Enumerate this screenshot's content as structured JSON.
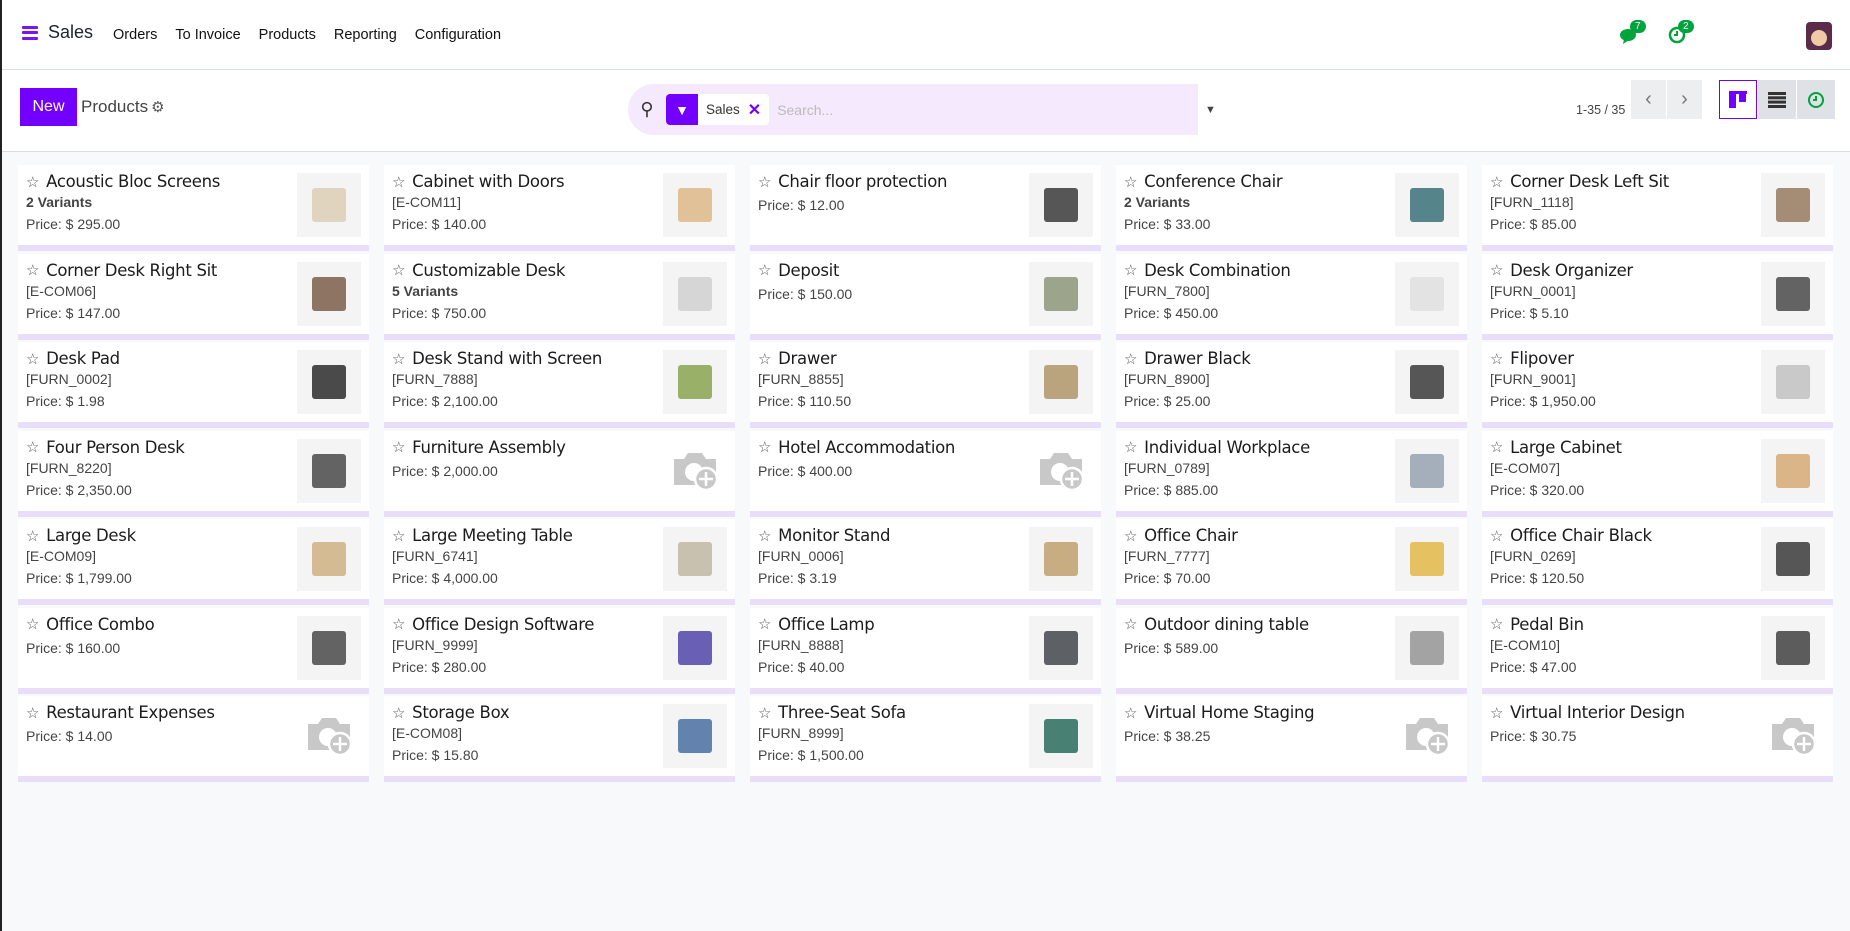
{
  "nav": {
    "app": "Sales",
    "menu": [
      "Orders",
      "To Invoice",
      "Products",
      "Reporting",
      "Configuration"
    ],
    "messages_count": "7",
    "activities_count": "2"
  },
  "control": {
    "new_label": "New",
    "breadcrumb": "Products",
    "filter_facet": "Sales",
    "search_placeholder": "Search...",
    "pager": "1-35 / 35",
    "active_view": "kanban"
  },
  "colors": {
    "brand": "#7300ff",
    "search_bg": "#f5e9fd",
    "badge": "#00a33c"
  },
  "products": [
    {
      "name": "Acoustic Bloc Screens",
      "sub": "2 Variants",
      "variants": true,
      "price": "Price: $ 295.00",
      "has_image": true,
      "tone": "#d8c9ad"
    },
    {
      "name": "Cabinet with Doors",
      "sub": "[E-COM11]",
      "price": "Price: $ 140.00",
      "has_image": true,
      "tone": "#d9b07a"
    },
    {
      "name": "Chair floor protection",
      "price": "Price: $ 12.00",
      "has_image": true,
      "tone": "#222"
    },
    {
      "name": "Conference Chair",
      "sub": "2 Variants",
      "variants": true,
      "price": "Price: $ 33.00",
      "has_image": true,
      "tone": "#1f5f68"
    },
    {
      "name": "Corner Desk Left Sit",
      "sub": "[FURN_1118]",
      "price": "Price: $ 85.00",
      "has_image": true,
      "tone": "#8a6a4b"
    },
    {
      "name": "Corner Desk Right Sit",
      "sub": "[E-COM06]",
      "price": "Price: $ 147.00",
      "has_image": true,
      "tone": "#6b4a32"
    },
    {
      "name": "Customizable Desk",
      "sub": "5 Variants",
      "variants": true,
      "price": "Price: $ 750.00",
      "has_image": true,
      "tone": "#ccc"
    },
    {
      "name": "Deposit",
      "price": "Price: $ 150.00",
      "has_image": true,
      "tone": "#7f8a6a"
    },
    {
      "name": "Desk Combination",
      "sub": "[FURN_7800]",
      "price": "Price: $ 450.00",
      "has_image": true,
      "tone": "#ddd"
    },
    {
      "name": "Desk Organizer",
      "sub": "[FURN_0001]",
      "price": "Price: $ 5.10",
      "has_image": true,
      "tone": "#333"
    },
    {
      "name": "Desk Pad",
      "sub": "[FURN_0002]",
      "price": "Price: $ 1.98",
      "has_image": true,
      "tone": "#111"
    },
    {
      "name": "Desk Stand with Screen",
      "sub": "[FURN_7888]",
      "price": "Price: $ 2,100.00",
      "has_image": true,
      "tone": "#7a9a3a"
    },
    {
      "name": "Drawer",
      "sub": "[FURN_8855]",
      "price": "Price: $ 110.50",
      "has_image": true,
      "tone": "#a58a55"
    },
    {
      "name": "Drawer Black",
      "sub": "[FURN_8900]",
      "price": "Price: $ 25.00",
      "has_image": true,
      "tone": "#222"
    },
    {
      "name": "Flipover",
      "sub": "[FURN_9001]",
      "price": "Price: $ 1,950.00",
      "has_image": true,
      "tone": "#bbb"
    },
    {
      "name": "Four Person Desk",
      "sub": "[FURN_8220]",
      "price": "Price: $ 2,350.00",
      "has_image": true,
      "tone": "#333"
    },
    {
      "name": "Furniture Assembly",
      "price": "Price: $ 2,000.00",
      "has_image": false
    },
    {
      "name": "Hotel Accommodation",
      "price": "Price: $ 400.00",
      "has_image": false
    },
    {
      "name": "Individual Workplace",
      "sub": "[FURN_0789]",
      "price": "Price: $ 885.00",
      "has_image": true,
      "tone": "#8a97a8"
    },
    {
      "name": "Large Cabinet",
      "sub": "[E-COM07]",
      "price": "Price: $ 320.00",
      "has_image": true,
      "tone": "#d1a064"
    },
    {
      "name": "Large Desk",
      "sub": "[E-COM09]",
      "price": "Price: $ 1,799.00",
      "has_image": true,
      "tone": "#c9a874"
    },
    {
      "name": "Large Meeting Table",
      "sub": "[FURN_6741]",
      "price": "Price: $ 4,000.00",
      "has_image": true,
      "tone": "#b8b09a"
    },
    {
      "name": "Monitor Stand",
      "sub": "[FURN_0006]",
      "price": "Price: $ 3.19",
      "has_image": true,
      "tone": "#b8965e"
    },
    {
      "name": "Office Chair",
      "sub": "[FURN_7777]",
      "price": "Price: $ 70.00",
      "has_image": true,
      "tone": "#e0b030"
    },
    {
      "name": "Office Chair Black",
      "sub": "[FURN_0269]",
      "price": "Price: $ 120.50",
      "has_image": true,
      "tone": "#222"
    },
    {
      "name": "Office Combo",
      "price": "Price: $ 160.00",
      "has_image": true,
      "tone": "#333"
    },
    {
      "name": "Office Design Software",
      "sub": "[FURN_9999]",
      "price": "Price: $ 280.00",
      "has_image": true,
      "tone": "#3a2fa0"
    },
    {
      "name": "Office Lamp",
      "sub": "[FURN_8888]",
      "price": "Price: $ 40.00",
      "has_image": true,
      "tone": "#2a2f35"
    },
    {
      "name": "Outdoor dining table",
      "price": "Price: $ 589.00",
      "has_image": true,
      "tone": "#888"
    },
    {
      "name": "Pedal Bin",
      "sub": "[E-COM10]",
      "price": "Price: $ 47.00",
      "has_image": true,
      "tone": "#2a2a2a"
    },
    {
      "name": "Restaurant Expenses",
      "price": "Price: $ 14.00",
      "has_image": false
    },
    {
      "name": "Storage Box",
      "sub": "[E-COM08]",
      "price": "Price: $ 15.80",
      "has_image": true,
      "tone": "#2f5e95"
    },
    {
      "name": "Three-Seat Sofa",
      "sub": "[FURN_8999]",
      "price": "Price: $ 1,500.00",
      "has_image": true,
      "tone": "#0d5a4a"
    },
    {
      "name": "Virtual Home Staging",
      "price": "Price: $ 38.25",
      "has_image": false
    },
    {
      "name": "Virtual Interior Design",
      "price": "Price: $ 30.75",
      "has_image": false
    }
  ]
}
